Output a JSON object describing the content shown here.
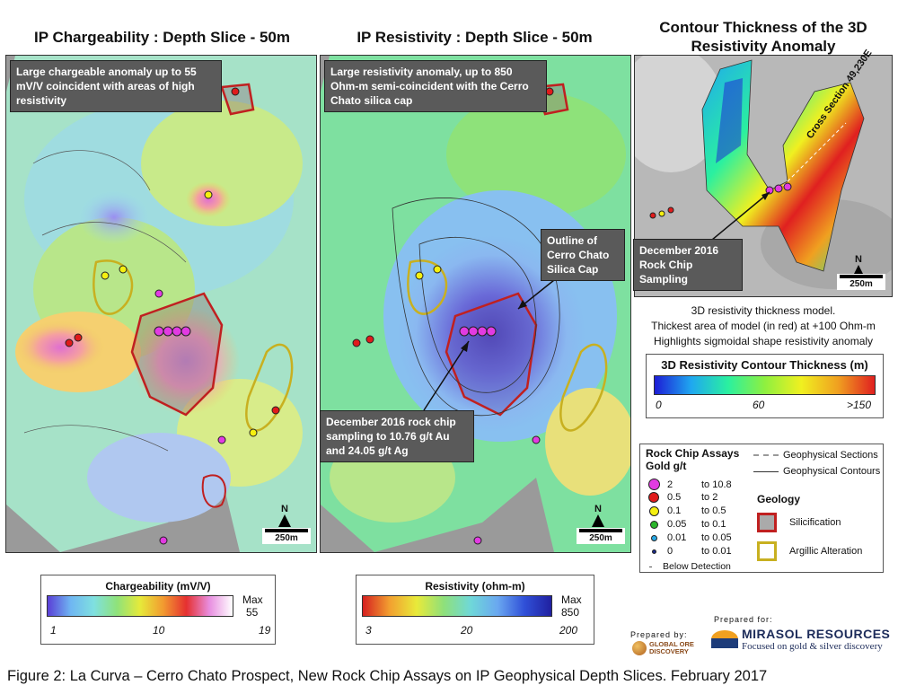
{
  "titles": {
    "chargeability": "IP Chargeability : Depth Slice  - 50m",
    "resistivity": "IP Resistivity : Depth Slice  - 50m",
    "thickness": "Contour Thickness of the 3D Resistivity Anomaly"
  },
  "callouts": {
    "chargeability_note": "Large chargeable anomaly up to 55 mV/V coincident with areas of high resistivity",
    "resistivity_note": "Large resistivity anomaly, up to 850 Ohm-m semi-coincident with the Cerro Chato silica cap",
    "silica_cap": "Outline of Cerro Chato Silica Cap",
    "rock_chip_result": "December  2016 rock chip sampling to 10.76 g/t Au and 24.05 g/t Ag",
    "rock_chip_3d": "December  2016 Rock Chip Sampling",
    "cross_section": "Cross Section 49,230E"
  },
  "map_marks": {
    "north": "N",
    "scale": "250m"
  },
  "thickness_description": [
    "3D resistivity thickness model.",
    "Thickest area of model (in red) at +100 Ohm-m",
    "Highlights sigmoidal shape resistivity anomaly"
  ],
  "legends": {
    "thickness": {
      "title": "3D Resistivity Contour Thickness (m)",
      "ticks": [
        "0",
        "60",
        ">150"
      ]
    },
    "chargeability": {
      "title": "Chargeability (mV/V)",
      "ticks": [
        "1",
        "10",
        "19"
      ],
      "max_label": "Max",
      "max_value": "55"
    },
    "resistivity": {
      "title": "Resistivity (ohm-m)",
      "ticks": [
        "3",
        "20",
        "200"
      ],
      "max_label": "Max",
      "max_value": "850"
    }
  },
  "assays": {
    "title": "Rock Chip Assays",
    "subtitle": "Gold g/t",
    "rows": [
      {
        "from": "2",
        "to": "to 10.8",
        "color": "#e23be2",
        "size": 11
      },
      {
        "from": "0.5",
        "to": "to 2",
        "color": "#e01b1b",
        "size": 10
      },
      {
        "from": "0.1",
        "to": "to 0.5",
        "color": "#f5f010",
        "size": 9
      },
      {
        "from": "0.05",
        "to": "to 0.1",
        "color": "#2bb52b",
        "size": 7
      },
      {
        "from": "0.01",
        "to": "to 0.05",
        "color": "#27a9e6",
        "size": 5
      },
      {
        "from": "0",
        "to": "to 0.01",
        "color": "#1a2a8a",
        "size": 3
      }
    ],
    "below_detection": "Below Detection",
    "lines": [
      {
        "label": "Geophysical Sections"
      },
      {
        "label": "Geophysical Contours"
      }
    ],
    "geology_title": "Geology",
    "geology": [
      {
        "label": "Silicification"
      },
      {
        "label": "Argillic Alteration"
      }
    ]
  },
  "credits": {
    "prepared_by": "Prepared by:",
    "company_by": "GLOBAL ORE DISCOVERY",
    "prepared_for": "Prepared for:",
    "company_for": "MIRASOL RESOURCES",
    "tagline": "Focused on gold & silver discovery"
  },
  "caption": "Figure 2: La Curva – Cerro Chato Prospect, New Rock Chip Assays on IP Geophysical Depth Slices. February 2017",
  "colors": {
    "chargeability_ramp": [
      "#5a3fd6",
      "#6fb6f2",
      "#7fe0e0",
      "#8fe27a",
      "#e6ea3a",
      "#f29a30",
      "#e53030",
      "#e88ee0",
      "#ffffff"
    ],
    "resistivity_ramp": [
      "#d62020",
      "#f2a030",
      "#e8ea3a",
      "#8fe07a",
      "#6fd8d8",
      "#6aa8f0",
      "#3050d8",
      "#2020a0"
    ],
    "thickness_ramp": [
      "#1d1dd6",
      "#1fa8f0",
      "#2af0a0",
      "#8ef040",
      "#f0f020",
      "#f0a020",
      "#e02020"
    ]
  }
}
